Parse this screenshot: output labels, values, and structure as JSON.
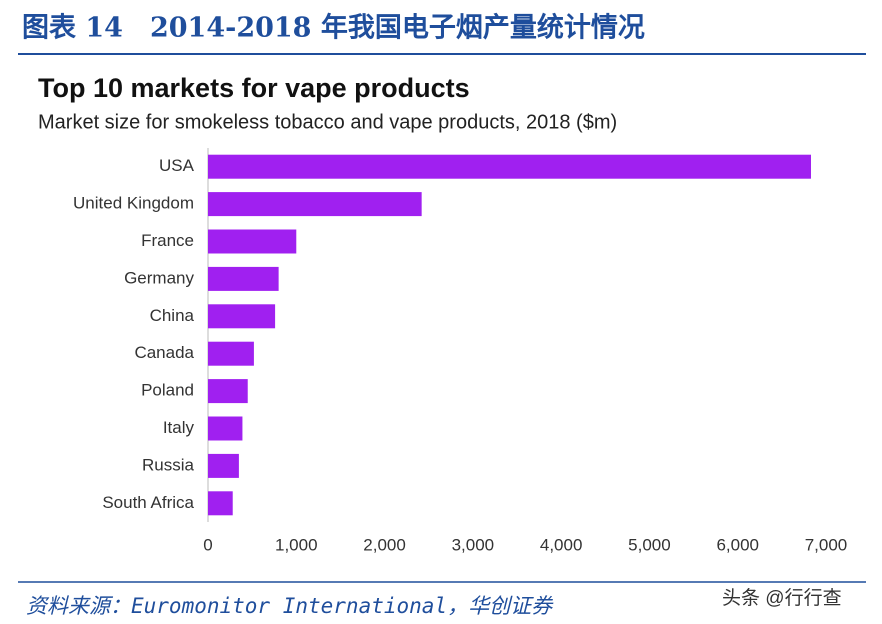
{
  "figure_title": "图表 14　2014-2018 年我国电子烟产量统计情况",
  "source": "资料来源：Euromonitor International，华创证券",
  "watermark": "头条 @行行查",
  "chart_data": {
    "type": "bar",
    "orientation": "horizontal",
    "title": "Top 10 markets for vape products",
    "subtitle": "Market size for smokeless tobacco and vape products, 2018 ($m)",
    "categories": [
      "USA",
      "United Kingdom",
      "France",
      "Germany",
      "China",
      "Canada",
      "Poland",
      "Italy",
      "Russia",
      "South Africa"
    ],
    "values": [
      6830,
      2420,
      1000,
      800,
      760,
      520,
      450,
      390,
      350,
      280
    ],
    "color": "#a020f0",
    "xlim": [
      0,
      7000
    ],
    "xticks": [
      0,
      {
        "value": 1000,
        "label": "1,000"
      },
      {
        "value": 2000,
        "label": "2,000"
      },
      {
        "value": 3000,
        "label": "3,000"
      },
      {
        "value": 4000,
        "label": "4,000"
      },
      {
        "value": 5000,
        "label": "5,000"
      },
      {
        "value": 6000,
        "label": "6,000"
      },
      {
        "value": 7000,
        "label": "7,000"
      }
    ],
    "grid": false
  }
}
